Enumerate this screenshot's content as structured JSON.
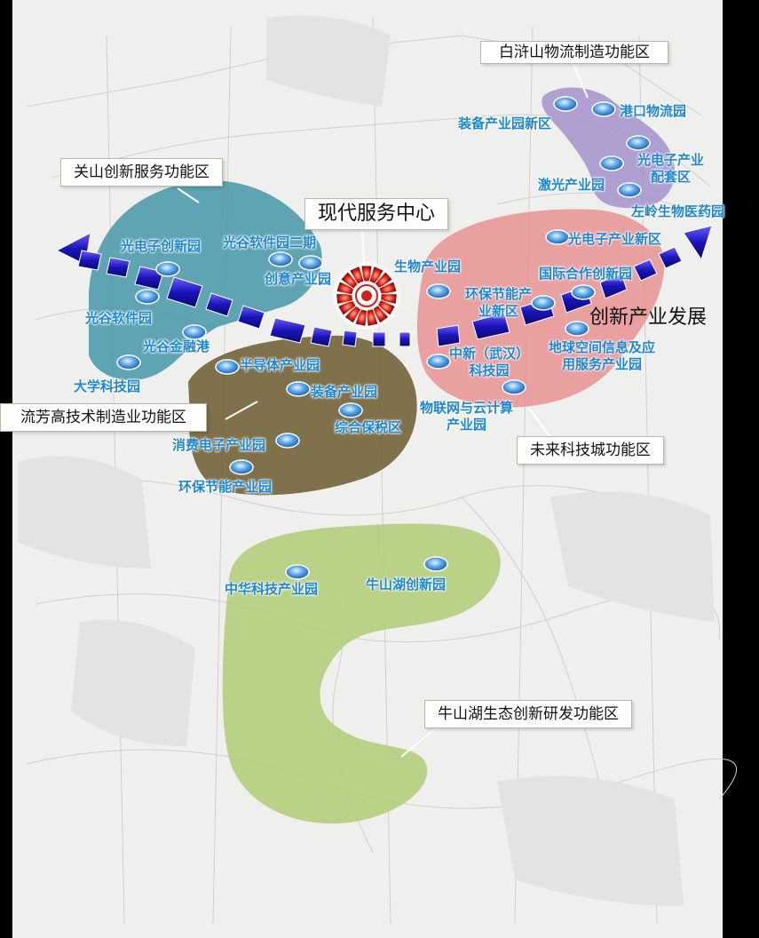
{
  "colors": {
    "zone_guanshan": "#3f94a6",
    "zone_liufang": "#6b5b2e",
    "zone_future": "#e6898c",
    "zone_baishan": "#a492cc",
    "zone_niushan": "#b3cd7a",
    "marker": "#3f8fd6",
    "label": "#1f86d2",
    "hub": "#e02020"
  },
  "hub": {
    "label": "现代服务中心"
  },
  "axis": {
    "label": "创新产业发展"
  },
  "zones": {
    "guanshan": "关山创新服务功能区",
    "liufang": "流芳高技术制造业功能区",
    "future": "未来科技城功能区",
    "baishan": "白浒山物流制造功能区",
    "niushan": "牛山湖生态创新研发功能区"
  },
  "parks": {
    "optoelectronic_innovation": "光电子创新园",
    "optics_valley_software_phase2": "光谷软件园二期",
    "creative_industry": "创意产业园",
    "optics_valley_software": "光谷软件园",
    "optics_valley_finance_port": "光谷金融港",
    "university_science_park": "大学科技园",
    "semiconductor": "半导体产业园",
    "equipment": "装备产业园",
    "bonded_zone": "综合保税区",
    "consumer_electronics": "消费电子产业园",
    "env_energy_west": "环保节能产业园",
    "biotech": "生物产业园",
    "env_energy_east_line1": "环保节能产",
    "env_energy_east_line2": "业新区",
    "sino_singapore_line1": "中新（武汉）",
    "sino_singapore_line2": "科技园",
    "iot_cloud_line1": "物联网与云计算",
    "iot_cloud_line2": "产业园",
    "optoelectronic_new_zone": "光电子产业新区",
    "intl_cooperation": "国际合作创新园",
    "geospatial_line1": "地球空间信息及应",
    "geospatial_line2": "用服务产业园",
    "equipment_new_zone": "装备产业园新区",
    "port_logistics": "港口物流园",
    "optoelectronic_support_line1": "光电子产业",
    "optoelectronic_support_line2": "配套区",
    "laser": "激光产业园",
    "zuoling_biomed": "左岭生物医药园",
    "zhonghua_tech": "中华科技产业园",
    "niushan_lake_innovation": "牛山湖创新园"
  }
}
